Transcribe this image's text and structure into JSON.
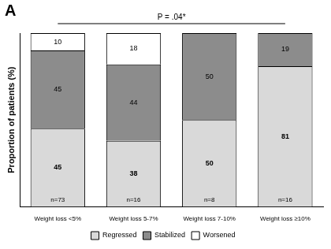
{
  "chart_data": {
    "type": "bar",
    "panel": "A",
    "annotation": "P = .04*",
    "y_label": "Proportion of patients (%)",
    "categories": [
      "Weight loss <5%",
      "Weight loss 5-7%",
      "Weight loss 7-10%",
      "Weight loss ≥10%"
    ],
    "bar_notes": [
      "n=73",
      "n=16",
      "n=8",
      "n=16"
    ],
    "series": [
      {
        "name": "Regressed",
        "color": "#d9d9d9",
        "values": [
          45,
          38,
          50,
          81
        ]
      },
      {
        "name": "Stabilized",
        "color": "#8c8c8c",
        "values": [
          45,
          44,
          50,
          19
        ]
      },
      {
        "name": "Worsened",
        "color": "#ffffff",
        "values": [
          10,
          18,
          null,
          null
        ]
      }
    ],
    "ylim": [
      0,
      100
    ],
    "yticks": [],
    "stacked": true,
    "data_labels": true,
    "tick_labels": "x",
    "grid": false,
    "legend": "bottom"
  }
}
